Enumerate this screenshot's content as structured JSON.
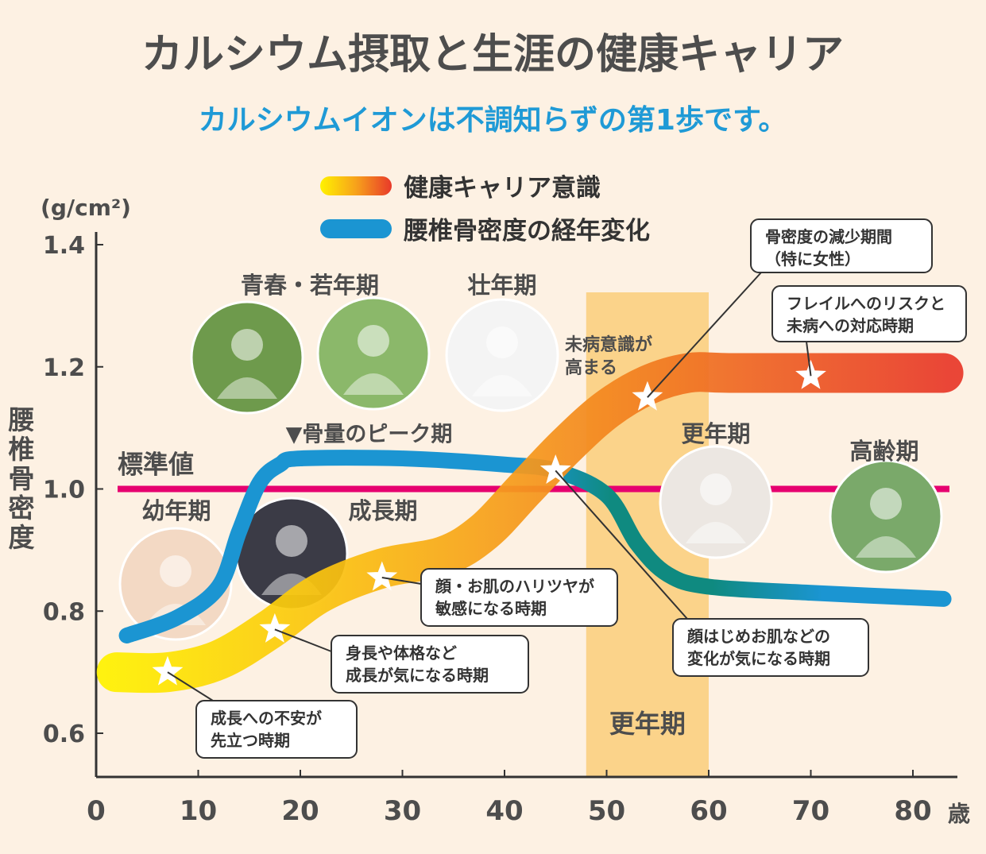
{
  "title": "カルシウム摂取と生涯の健康キャリア",
  "subtitle": "カルシウムイオンは不調知らずの第1歩です。",
  "colors": {
    "background": "#fdf1e3",
    "title": "#4d4d4d",
    "subtitle": "#1f9ad6",
    "career_start": "#fff200",
    "career_mid": "#f7a21b",
    "career_end": "#e8392a",
    "bone_blue": "#1b95d2",
    "bone_teal": "#0f8a80",
    "standard": "#e6006f",
    "peak_marker": "#e60012",
    "menopause_band": "#fbd38a",
    "prevention_text": "#1f9ad6"
  },
  "chart_data": {
    "type": "line",
    "ylabel_unit": "(g/cm²)",
    "ylabel": "腰椎骨密度",
    "xlabel_unit": "歳",
    "xlim": [
      0,
      85
    ],
    "ylim": [
      0.53,
      1.45
    ],
    "x_ticks": [
      "0",
      "10",
      "20",
      "30",
      "40",
      "50",
      "60",
      "70",
      "80"
    ],
    "y_ticks": [
      "0.6",
      "0.8",
      "1.0",
      "1.2",
      "1.4"
    ],
    "legend": [
      {
        "name": "健康キャリア意識",
        "icon": "gradient-bar-yellow-red"
      },
      {
        "name": "腰椎骨密度の経年変化",
        "icon": "blue-bar"
      }
    ],
    "series": [
      {
        "name": "健康キャリア意識",
        "x": [
          2,
          7,
          12,
          17,
          22,
          28,
          34,
          38,
          42,
          46,
          50,
          54,
          58,
          62,
          70,
          80,
          83
        ],
        "y": [
          0.7,
          0.7,
          0.72,
          0.77,
          0.83,
          0.87,
          0.89,
          0.93,
          1.0,
          1.07,
          1.13,
          1.17,
          1.19,
          1.19,
          1.19,
          1.19,
          1.19
        ]
      },
      {
        "name": "腰椎骨密度の経年変化",
        "x": [
          3,
          8,
          12,
          14,
          16,
          18,
          20,
          30,
          40,
          45,
          50,
          53,
          56,
          60,
          70,
          83
        ],
        "y": [
          0.76,
          0.79,
          0.84,
          0.93,
          1.01,
          1.04,
          1.05,
          1.05,
          1.04,
          1.03,
          0.99,
          0.91,
          0.86,
          0.84,
          0.83,
          0.82
        ]
      }
    ],
    "reference_line": {
      "label": "標準値",
      "y": 1.0
    },
    "peak_marker": {
      "label": "▼骨量のピーク期",
      "x": 19.5,
      "y": 1.07
    },
    "menopause_band": {
      "label": "更年期",
      "x_from": 48,
      "x_to": 60
    },
    "prevention_note": {
      "lines": [
        "未病意識が",
        "高まる"
      ],
      "x": 46,
      "y": 1.22
    },
    "stars": [
      {
        "x": 7,
        "y": 0.7
      },
      {
        "x": 17.5,
        "y": 0.77
      },
      {
        "x": 28,
        "y": 0.855
      },
      {
        "x": 45,
        "y": 1.03
      },
      {
        "x": 54,
        "y": 1.15
      },
      {
        "x": 70,
        "y": 1.185
      }
    ],
    "life_stages": [
      {
        "label": "幼年期",
        "x": 8,
        "y": 0.97
      },
      {
        "label": "成長期",
        "x": 28,
        "y": 0.97
      },
      {
        "label": "青春・若年期",
        "x": 20,
        "y": 1.34
      },
      {
        "label": "壮年期",
        "x": 41,
        "y": 1.34
      },
      {
        "label": "更年期",
        "x": 61,
        "y": 1.09
      },
      {
        "label": "高齢期",
        "x": 78,
        "y": 1.05
      }
    ],
    "callouts": [
      {
        "lines": [
          "成長への不安が",
          "先立つ時期"
        ],
        "target_x": 7,
        "target_y": 0.7
      },
      {
        "lines": [
          "身長や体格など",
          "成長が気になる時期"
        ],
        "target_x": 17.5,
        "target_y": 0.77
      },
      {
        "lines": [
          "顔・お肌のハリツヤが",
          "敏感になる時期"
        ],
        "target_x": 28,
        "target_y": 0.855
      },
      {
        "lines": [
          "顔はじめお肌などの",
          "変化が気になる時期"
        ],
        "target_x": 45,
        "target_y": 1.03
      },
      {
        "lines": [
          "骨密度の減少期間",
          "（特に女性）"
        ],
        "target_x": 54,
        "target_y": 1.15
      },
      {
        "lines": [
          "フレイルへのリスクと",
          "未病への対応時期"
        ],
        "target_x": 70,
        "target_y": 1.185
      }
    ]
  }
}
